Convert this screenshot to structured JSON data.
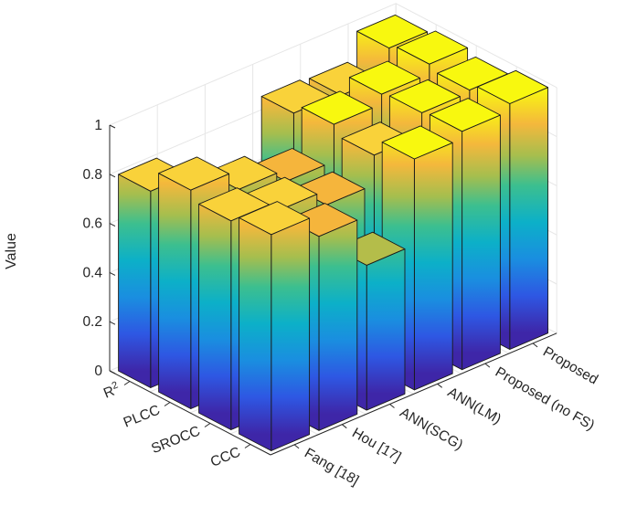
{
  "chart_data": {
    "type": "bar3d",
    "zlabel": "Value",
    "zlim": [
      0,
      1
    ],
    "zticks": [
      "0",
      "0.2",
      "0.4",
      "0.6",
      "0.8",
      "1"
    ],
    "methods": [
      "Fang [18]",
      "Hou [17]",
      "ANN(SCG)",
      "ANN(LM)",
      "Proposed (no FS)",
      "Proposed"
    ],
    "metrics": [
      "CCC",
      "SROCC",
      "PLCC",
      "R²"
    ],
    "series": [
      {
        "name": "CCC",
        "values": [
          0.88,
          0.79,
          0.59,
          0.94,
          0.97,
          1.0
        ]
      },
      {
        "name": "SROCC",
        "values": [
          0.85,
          0.81,
          0.75,
          0.87,
          0.96,
          0.97
        ]
      },
      {
        "name": "PLCC",
        "values": [
          0.89,
          0.81,
          0.76,
          0.91,
          0.95,
          0.99
        ]
      },
      {
        "name": "R²",
        "values": [
          0.8,
          0.65,
          0.29,
          0.87,
          0.86,
          0.97
        ]
      }
    ],
    "colormap": "parula",
    "grid": true
  }
}
